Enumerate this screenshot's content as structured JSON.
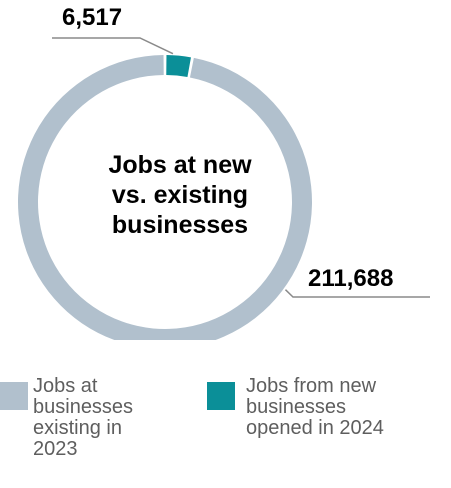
{
  "colors": {
    "existing": "#b1c0cd",
    "new": "#0b8f98",
    "leader": "#8a8a8a",
    "background": "#ffffff"
  },
  "chart_data": {
    "type": "pie",
    "style": "donut",
    "title_lines": [
      "Jobs at new",
      "vs. existing",
      "businesses"
    ],
    "slices": [
      {
        "name": "Jobs at businesses existing in 2023",
        "value": 211688,
        "label": "211,688"
      },
      {
        "name": "Jobs from new businesses opened in 2024",
        "value": 6517,
        "label": "6,517"
      }
    ],
    "legend_placement": "bottom"
  },
  "legend": {
    "items": [
      {
        "lines": [
          "Jobs at",
          "businesses",
          "existing in",
          "2023"
        ]
      },
      {
        "lines": [
          "Jobs from new",
          "businesses",
          "opened in 2024"
        ]
      }
    ]
  }
}
